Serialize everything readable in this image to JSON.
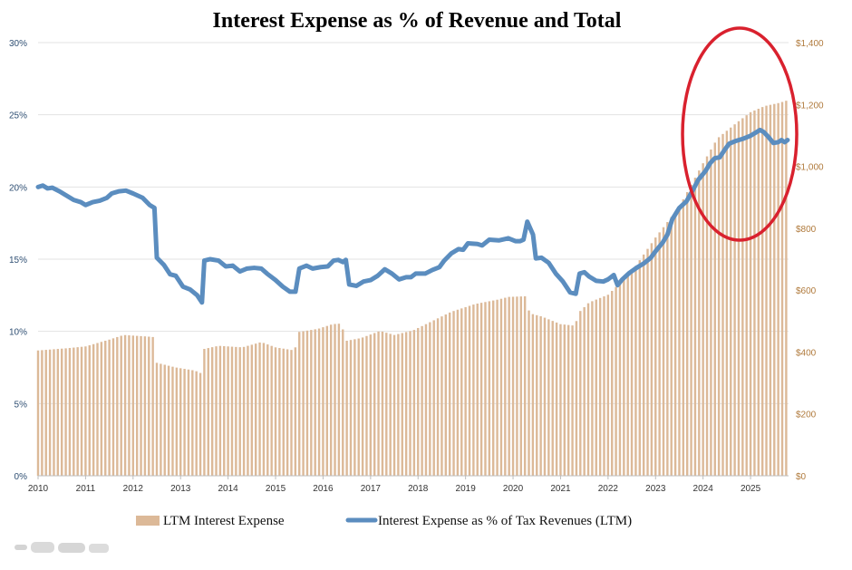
{
  "chart_data": {
    "type": "bar+line",
    "title": "Interest Expense as % of  Revenue and Total",
    "x_ticks": [
      "2010",
      "2011",
      "2012",
      "2013",
      "2014",
      "2015",
      "2016",
      "2017",
      "2018",
      "2019",
      "2020",
      "2021",
      "2022",
      "2023",
      "2024",
      "2025"
    ],
    "x_range": [
      2010.0,
      2025.8
    ],
    "y_left": {
      "range": [
        0,
        30
      ],
      "ticks": [
        "0%",
        "5%",
        "10%",
        "15%",
        "20%",
        "25%",
        "30%"
      ]
    },
    "y_right": {
      "range": [
        0,
        1400
      ],
      "ticks": [
        "$0",
        "$200",
        "$400",
        "$600",
        "$800",
        "$1,000",
        "$1,200",
        "$1,400"
      ]
    },
    "grid": true,
    "legend_position": "bottom",
    "series": [
      {
        "name": "LTM Interest Expense",
        "kind": "bar",
        "axis": "right",
        "color": "#dcb998",
        "anchors": [
          [
            2010.0,
            405
          ],
          [
            2010.6,
            412
          ],
          [
            2011.0,
            418
          ],
          [
            2011.5,
            440
          ],
          [
            2011.8,
            455
          ],
          [
            2012.3,
            450
          ],
          [
            2012.45,
            448
          ],
          [
            2012.5,
            365
          ],
          [
            2012.9,
            350
          ],
          [
            2013.3,
            340
          ],
          [
            2013.45,
            330
          ],
          [
            2013.5,
            410
          ],
          [
            2013.8,
            420
          ],
          [
            2014.3,
            415
          ],
          [
            2014.7,
            432
          ],
          [
            2015.0,
            415
          ],
          [
            2015.4,
            405
          ],
          [
            2015.5,
            465
          ],
          [
            2015.9,
            475
          ],
          [
            2016.2,
            490
          ],
          [
            2016.4,
            492
          ],
          [
            2016.45,
            435
          ],
          [
            2016.8,
            445
          ],
          [
            2017.2,
            468
          ],
          [
            2017.5,
            455
          ],
          [
            2017.9,
            470
          ],
          [
            2018.3,
            500
          ],
          [
            2018.7,
            530
          ],
          [
            2019.2,
            555
          ],
          [
            2019.7,
            570
          ],
          [
            2019.9,
            578
          ],
          [
            2020.25,
            580
          ],
          [
            2020.35,
            525
          ],
          [
            2020.6,
            515
          ],
          [
            2021.0,
            490
          ],
          [
            2021.3,
            485
          ],
          [
            2021.4,
            530
          ],
          [
            2021.6,
            560
          ],
          [
            2022.0,
            585
          ],
          [
            2022.5,
            660
          ],
          [
            2023.0,
            770
          ],
          [
            2023.5,
            870
          ],
          [
            2024.0,
            1010
          ],
          [
            2024.3,
            1090
          ],
          [
            2024.7,
            1140
          ],
          [
            2025.0,
            1175
          ],
          [
            2025.3,
            1195
          ],
          [
            2025.6,
            1205
          ],
          [
            2025.75,
            1212
          ]
        ]
      },
      {
        "name": "Interest Expense as % of Tax Revenues (LTM)",
        "kind": "line",
        "axis": "left",
        "color": "#5b8dbf",
        "points": [
          [
            2010.0,
            20.0
          ],
          [
            2010.1,
            20.1
          ],
          [
            2010.2,
            19.9
          ],
          [
            2010.3,
            19.95
          ],
          [
            2010.45,
            19.7
          ],
          [
            2010.6,
            19.4
          ],
          [
            2010.75,
            19.1
          ],
          [
            2010.9,
            18.95
          ],
          [
            2011.0,
            18.75
          ],
          [
            2011.15,
            18.95
          ],
          [
            2011.3,
            19.05
          ],
          [
            2011.45,
            19.25
          ],
          [
            2011.55,
            19.55
          ],
          [
            2011.7,
            19.7
          ],
          [
            2011.85,
            19.75
          ],
          [
            2012.0,
            19.55
          ],
          [
            2012.2,
            19.25
          ],
          [
            2012.35,
            18.75
          ],
          [
            2012.45,
            18.55
          ],
          [
            2012.5,
            15.1
          ],
          [
            2012.65,
            14.6
          ],
          [
            2012.78,
            13.95
          ],
          [
            2012.9,
            13.85
          ],
          [
            2013.05,
            13.1
          ],
          [
            2013.2,
            12.9
          ],
          [
            2013.35,
            12.5
          ],
          [
            2013.45,
            12.0
          ],
          [
            2013.5,
            14.9
          ],
          [
            2013.62,
            15.0
          ],
          [
            2013.8,
            14.9
          ],
          [
            2013.95,
            14.5
          ],
          [
            2014.1,
            14.55
          ],
          [
            2014.25,
            14.15
          ],
          [
            2014.4,
            14.35
          ],
          [
            2014.55,
            14.4
          ],
          [
            2014.7,
            14.35
          ],
          [
            2014.82,
            14.0
          ],
          [
            2015.0,
            13.55
          ],
          [
            2015.15,
            13.1
          ],
          [
            2015.3,
            12.75
          ],
          [
            2015.42,
            12.75
          ],
          [
            2015.5,
            14.35
          ],
          [
            2015.65,
            14.55
          ],
          [
            2015.78,
            14.35
          ],
          [
            2015.95,
            14.45
          ],
          [
            2016.1,
            14.5
          ],
          [
            2016.22,
            14.9
          ],
          [
            2016.32,
            14.95
          ],
          [
            2016.42,
            14.8
          ],
          [
            2016.48,
            14.95
          ],
          [
            2016.55,
            13.25
          ],
          [
            2016.7,
            13.15
          ],
          [
            2016.85,
            13.45
          ],
          [
            2017.0,
            13.55
          ],
          [
            2017.15,
            13.85
          ],
          [
            2017.3,
            14.3
          ],
          [
            2017.45,
            14.0
          ],
          [
            2017.6,
            13.6
          ],
          [
            2017.75,
            13.75
          ],
          [
            2017.85,
            13.75
          ],
          [
            2017.95,
            14.0
          ],
          [
            2018.15,
            14.0
          ],
          [
            2018.3,
            14.25
          ],
          [
            2018.45,
            14.45
          ],
          [
            2018.55,
            14.9
          ],
          [
            2018.7,
            15.4
          ],
          [
            2018.85,
            15.7
          ],
          [
            2018.95,
            15.65
          ],
          [
            2019.05,
            16.1
          ],
          [
            2019.25,
            16.05
          ],
          [
            2019.35,
            15.95
          ],
          [
            2019.5,
            16.35
          ],
          [
            2019.7,
            16.3
          ],
          [
            2019.9,
            16.45
          ],
          [
            2020.05,
            16.25
          ],
          [
            2020.15,
            16.25
          ],
          [
            2020.22,
            16.35
          ],
          [
            2020.3,
            17.6
          ],
          [
            2020.42,
            16.7
          ],
          [
            2020.48,
            15.05
          ],
          [
            2020.6,
            15.1
          ],
          [
            2020.75,
            14.75
          ],
          [
            2020.9,
            14.0
          ],
          [
            2021.05,
            13.45
          ],
          [
            2021.2,
            12.7
          ],
          [
            2021.32,
            12.6
          ],
          [
            2021.4,
            14.0
          ],
          [
            2021.5,
            14.1
          ],
          [
            2021.6,
            13.8
          ],
          [
            2021.75,
            13.5
          ],
          [
            2021.9,
            13.45
          ],
          [
            2022.0,
            13.6
          ],
          [
            2022.12,
            13.9
          ],
          [
            2022.2,
            13.2
          ],
          [
            2022.3,
            13.6
          ],
          [
            2022.45,
            14.05
          ],
          [
            2022.6,
            14.4
          ],
          [
            2022.75,
            14.7
          ],
          [
            2022.9,
            15.1
          ],
          [
            2023.0,
            15.55
          ],
          [
            2023.15,
            16.15
          ],
          [
            2023.25,
            16.7
          ],
          [
            2023.35,
            17.75
          ],
          [
            2023.5,
            18.55
          ],
          [
            2023.65,
            19.0
          ],
          [
            2023.78,
            19.75
          ],
          [
            2023.9,
            20.5
          ],
          [
            2024.05,
            21.1
          ],
          [
            2024.15,
            21.65
          ],
          [
            2024.25,
            22.0
          ],
          [
            2024.35,
            22.05
          ],
          [
            2024.45,
            22.55
          ],
          [
            2024.55,
            23.0
          ],
          [
            2024.7,
            23.2
          ],
          [
            2024.85,
            23.35
          ],
          [
            2025.0,
            23.55
          ],
          [
            2025.1,
            23.75
          ],
          [
            2025.2,
            23.95
          ],
          [
            2025.28,
            23.8
          ],
          [
            2025.38,
            23.45
          ],
          [
            2025.48,
            23.05
          ],
          [
            2025.58,
            23.1
          ],
          [
            2025.65,
            23.25
          ],
          [
            2025.72,
            23.1
          ],
          [
            2025.78,
            23.25
          ]
        ]
      }
    ]
  }
}
